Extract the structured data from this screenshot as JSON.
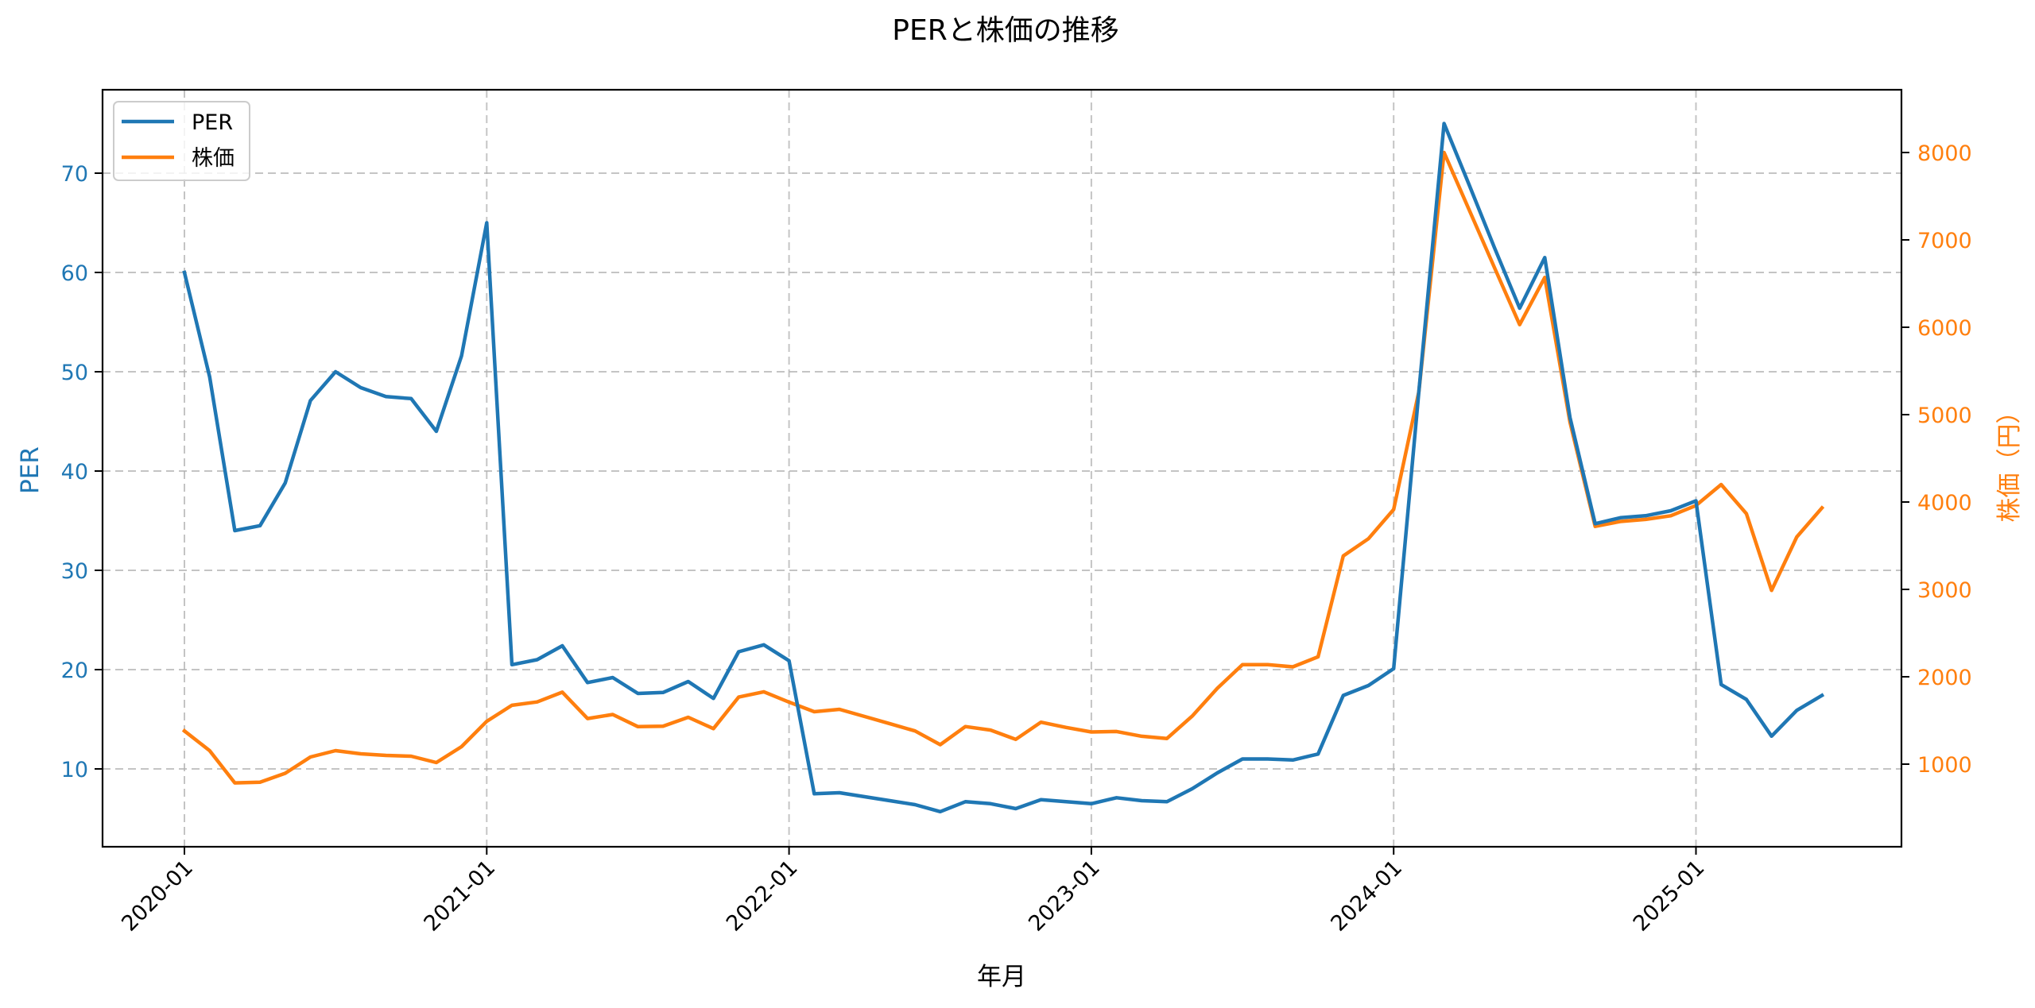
{
  "chart_data": {
    "type": "line",
    "title": "PERと株価の推移",
    "xlabel": "年月",
    "ylabel": "PER",
    "y2label": "株価（円）",
    "ylim": [
      2.0,
      78.0
    ],
    "y2lim": [
      0,
      8700
    ],
    "grid": true,
    "legend_position": "upper left",
    "x_tick_labels": [
      "2020-01",
      "2021-01",
      "2022-01",
      "2023-01",
      "2024-01",
      "2025-01"
    ],
    "y_ticks": [
      10,
      20,
      30,
      40,
      50,
      60,
      70
    ],
    "y2_ticks": [
      1000,
      2000,
      3000,
      4000,
      5000,
      6000,
      7000,
      8000
    ],
    "x": [
      "2020-01",
      "2020-02",
      "2020-03",
      "2020-04",
      "2020-05",
      "2020-06",
      "2020-07",
      "2020-08",
      "2020-09",
      "2020-10",
      "2020-11",
      "2020-12",
      "2021-01",
      "2021-02",
      "2021-03",
      "2021-04",
      "2021-05",
      "2021-06",
      "2021-07",
      "2021-08",
      "2021-09",
      "2021-10",
      "2021-11",
      "2021-12",
      "2022-01",
      "2022-02",
      "2022-03",
      "2022-04",
      "2022-05",
      "2022-06",
      "2022-07",
      "2022-08",
      "2022-09",
      "2022-10",
      "2022-11",
      "2022-12",
      "2023-01",
      "2023-02",
      "2023-03",
      "2023-04",
      "2023-05",
      "2023-06",
      "2023-07",
      "2023-08",
      "2023-09",
      "2023-10",
      "2023-11",
      "2023-12",
      "2024-01",
      "2024-02",
      "2024-03",
      "2024-04",
      "2024-05",
      "2024-06",
      "2024-07",
      "2024-08",
      "2024-09",
      "2024-10",
      "2024-11",
      "2024-12",
      "2025-01",
      "2025-02",
      "2025-03",
      "2025-04",
      "2025-05",
      "2025-06"
    ],
    "series": [
      {
        "name": "PER",
        "axis": "left",
        "color": "#1f77b4",
        "values": [
          60.0,
          49.5,
          34.0,
          34.5,
          38.8,
          47.1,
          50.0,
          48.4,
          47.5,
          47.3,
          44.0,
          51.6,
          65.0,
          20.5,
          21.0,
          22.4,
          18.7,
          19.2,
          17.6,
          17.7,
          18.8,
          17.1,
          21.8,
          22.5,
          20.9,
          7.5,
          7.6,
          7.2,
          6.8,
          6.4,
          5.7,
          6.7,
          6.5,
          6.0,
          6.9,
          6.7,
          6.5,
          7.1,
          6.8,
          6.7,
          8.0,
          9.6,
          11.0,
          11.0,
          10.9,
          11.5,
          17.4,
          18.4,
          20.1,
          48.0,
          75.0,
          68.8,
          62.5,
          56.4,
          61.5,
          45.4,
          34.7,
          35.3,
          35.5,
          36.0,
          37.0,
          18.5,
          17.0,
          13.3,
          15.9,
          17.4
        ]
      },
      {
        "name": "株価",
        "axis": "right",
        "color": "#ff7f0e",
        "values": [
          1380,
          1155,
          785,
          794,
          895,
          1082,
          1155,
          1118,
          1100,
          1091,
          1018,
          1200,
          1490,
          1674,
          1712,
          1824,
          1522,
          1568,
          1429,
          1434,
          1536,
          1406,
          1767,
          1828,
          1710,
          1600,
          1627,
          1545,
          1463,
          1380,
          1223,
          1430,
          1390,
          1284,
          1480,
          1420,
          1368,
          1374,
          1319,
          1294,
          1549,
          1868,
          2139,
          2139,
          2114,
          2228,
          3383,
          3580,
          3915,
          5263,
          8000,
          7341,
          6683,
          6030,
          6570,
          4915,
          3721,
          3777,
          3801,
          3843,
          3960,
          4200,
          3867,
          2988,
          3600,
          3933
        ]
      }
    ]
  },
  "title": "PERと株価の推移",
  "axes": {
    "xlabel": "年月",
    "ylabel_left": "PER",
    "ylabel_right": "株価（円）",
    "left_color": "#1f77b4",
    "right_color": "#ff7f0e"
  },
  "legend": {
    "items": [
      {
        "label": "PER",
        "color": "#1f77b4"
      },
      {
        "label": "株価",
        "color": "#ff7f0e"
      }
    ]
  }
}
